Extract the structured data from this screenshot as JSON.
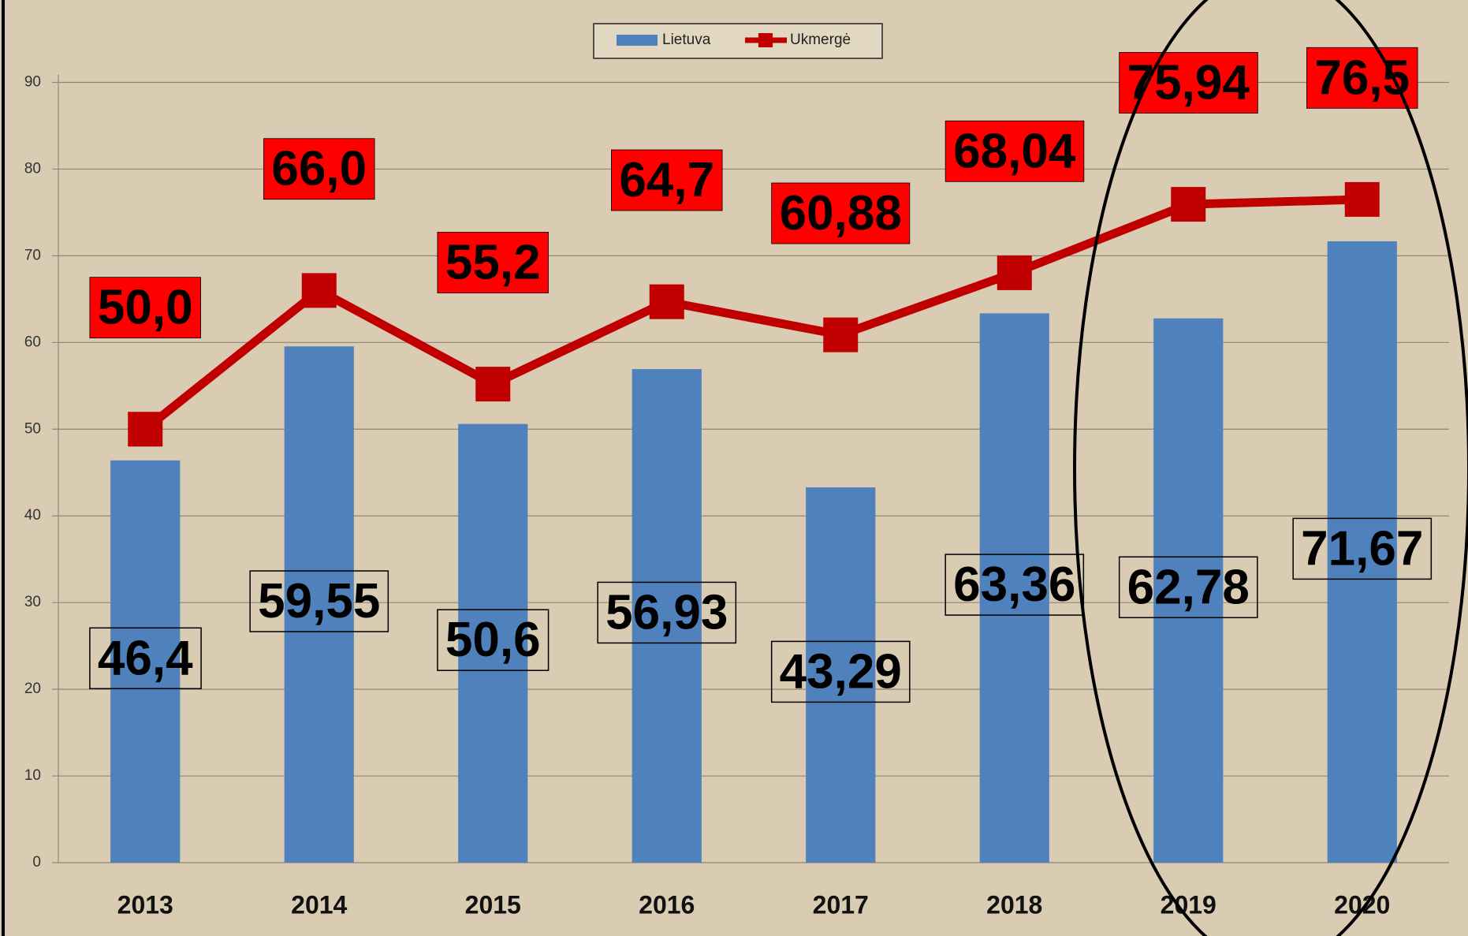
{
  "chart_data": {
    "type": "bar_line",
    "categories": [
      "2013",
      "2014",
      "2015",
      "2016",
      "2017",
      "2018",
      "2019",
      "2020"
    ],
    "series": [
      {
        "name": "Lietuva",
        "type": "bar",
        "color": "#4f81bd",
        "values": [
          46.4,
          59.55,
          50.6,
          56.93,
          43.29,
          63.36,
          62.78,
          71.67
        ],
        "value_labels": [
          "46,4",
          "59,55",
          "50,6",
          "56,93",
          "43,29",
          "63,36",
          "62,78",
          "71,67"
        ]
      },
      {
        "name": "Ukmergė",
        "type": "line",
        "color": "#c00000",
        "values": [
          50.0,
          66.0,
          55.2,
          64.7,
          60.88,
          68.04,
          75.94,
          76.5
        ],
        "value_labels": [
          "50,0",
          "66,0",
          "55,2",
          "64,7",
          "60,88",
          "68,04",
          "75,94",
          "76,5"
        ]
      }
    ],
    "ylim": [
      0,
      90
    ],
    "yticks": [
      0,
      10,
      20,
      30,
      40,
      50,
      60,
      70,
      80,
      90
    ],
    "grid": true,
    "legend": "top"
  }
}
